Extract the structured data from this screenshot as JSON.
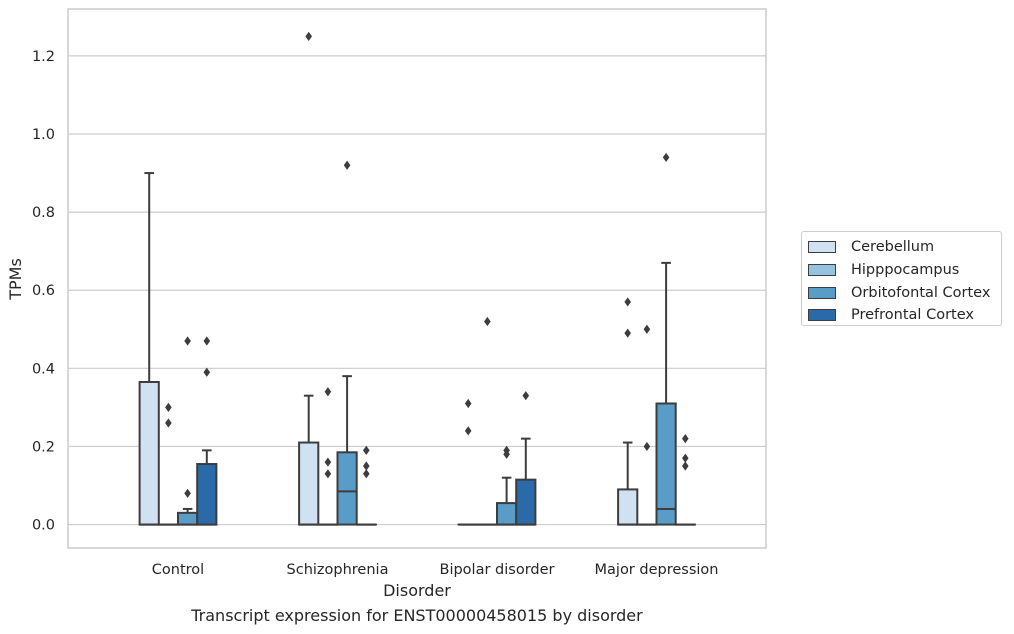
{
  "chart_data": {
    "type": "box",
    "xlabel": "Disorder",
    "ylabel": "TPMs",
    "ylim": [
      -0.06,
      1.32
    ],
    "yticks": [
      "0.0",
      "0.2",
      "0.4",
      "0.6",
      "0.8",
      "1.0",
      "1.2"
    ],
    "grid": "horizontal",
    "legend_placement": "right",
    "categories": [
      "Control",
      "Schizophrenia",
      "Bipolar disorder",
      "Major depression"
    ],
    "series": [
      {
        "name": "Cerebellum",
        "color": "#d0e1f2",
        "boxes": [
          {
            "q1": 0.0,
            "median": 0.0,
            "q3": 0.365,
            "whisker_low": 0.0,
            "whisker_high": 0.9,
            "outliers": []
          },
          {
            "q1": 0.0,
            "median": 0.0,
            "q3": 0.21,
            "whisker_low": 0.0,
            "whisker_high": 0.33,
            "outliers": [
              1.25
            ]
          },
          {
            "q1": 0.0,
            "median": 0.0,
            "q3": 0.0,
            "whisker_low": 0.0,
            "whisker_high": 0.0,
            "outliers": [
              0.31,
              0.24
            ]
          },
          {
            "q1": 0.0,
            "median": 0.0,
            "q3": 0.09,
            "whisker_low": 0.0,
            "whisker_high": 0.21,
            "outliers": [
              0.57,
              0.49
            ]
          }
        ]
      },
      {
        "name": "Hipppocampus",
        "color": "#94c4df",
        "boxes": [
          {
            "q1": 0.0,
            "median": 0.0,
            "q3": 0.0,
            "whisker_low": 0.0,
            "whisker_high": 0.0,
            "outliers": [
              0.3,
              0.26
            ]
          },
          {
            "q1": 0.0,
            "median": 0.0,
            "q3": 0.0,
            "whisker_low": 0.0,
            "whisker_high": 0.0,
            "outliers": [
              0.34,
              0.16,
              0.13
            ]
          },
          {
            "q1": 0.0,
            "median": 0.0,
            "q3": 0.0,
            "whisker_low": 0.0,
            "whisker_high": 0.0,
            "outliers": [
              0.52
            ]
          },
          {
            "q1": 0.0,
            "median": 0.0,
            "q3": 0.0,
            "whisker_low": 0.0,
            "whisker_high": 0.0,
            "outliers": [
              0.5,
              0.2
            ]
          }
        ]
      },
      {
        "name": "Orbitofontal Cortex",
        "color": "#5a9cc8",
        "boxes": [
          {
            "q1": 0.0,
            "median": 0.0,
            "q3": 0.03,
            "whisker_low": 0.0,
            "whisker_high": 0.04,
            "outliers": [
              0.47,
              0.08
            ]
          },
          {
            "q1": 0.0,
            "median": 0.085,
            "q3": 0.185,
            "whisker_low": 0.0,
            "whisker_high": 0.38,
            "outliers": [
              0.92
            ]
          },
          {
            "q1": 0.0,
            "median": 0.0,
            "q3": 0.055,
            "whisker_low": 0.0,
            "whisker_high": 0.12,
            "outliers": [
              0.19,
              0.18
            ]
          },
          {
            "q1": 0.0,
            "median": 0.04,
            "q3": 0.31,
            "whisker_low": 0.0,
            "whisker_high": 0.67,
            "outliers": [
              0.94
            ]
          }
        ]
      },
      {
        "name": "Prefrontal Cortex",
        "color": "#2b6aa8",
        "boxes": [
          {
            "q1": 0.0,
            "median": 0.0,
            "q3": 0.155,
            "whisker_low": 0.0,
            "whisker_high": 0.19,
            "outliers": [
              0.47,
              0.39
            ]
          },
          {
            "q1": 0.0,
            "median": 0.0,
            "q3": 0.0,
            "whisker_low": 0.0,
            "whisker_high": 0.0,
            "outliers": [
              0.19,
              0.15,
              0.13
            ]
          },
          {
            "q1": 0.0,
            "median": 0.0,
            "q3": 0.115,
            "whisker_low": 0.0,
            "whisker_high": 0.22,
            "outliers": [
              0.33
            ]
          },
          {
            "q1": 0.0,
            "median": 0.0,
            "q3": 0.0,
            "whisker_low": 0.0,
            "whisker_high": 0.0,
            "outliers": [
              0.22,
              0.17,
              0.15
            ]
          }
        ]
      }
    ],
    "caption": "Transcript expression for ENST00000458015 by disorder"
  }
}
